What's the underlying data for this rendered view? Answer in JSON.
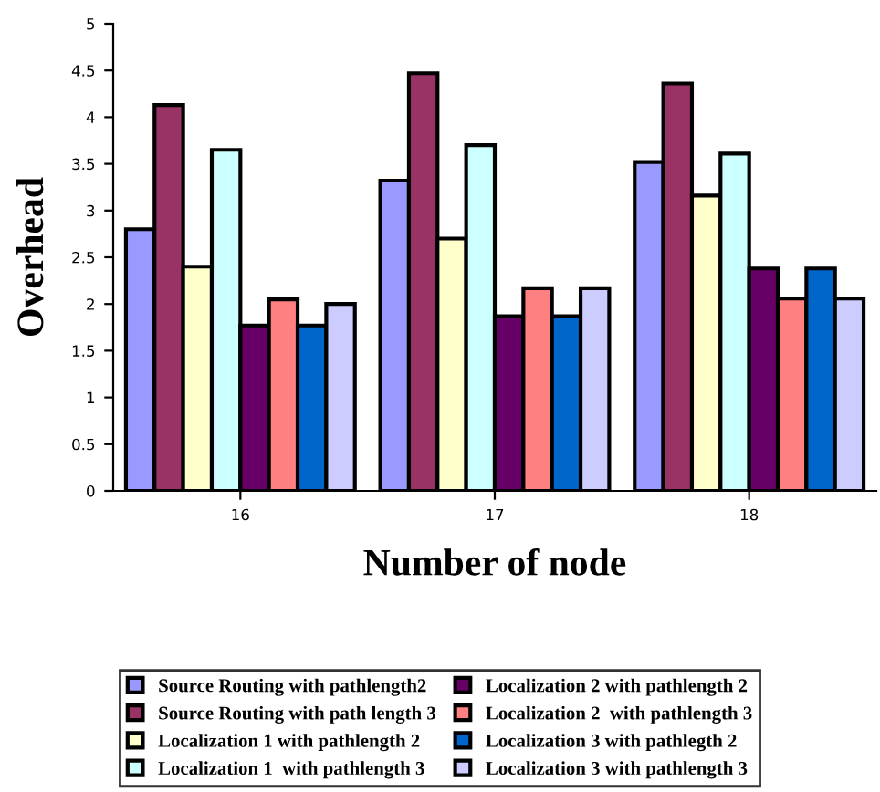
{
  "chart_data": {
    "type": "bar",
    "xlabel": "Number of node",
    "ylabel": "Overhead",
    "categories": [
      "16",
      "17",
      "18"
    ],
    "ylim": [
      0,
      5
    ],
    "yticks": [
      0,
      0.5,
      1,
      1.5,
      2,
      2.5,
      3,
      3.5,
      4,
      4.5,
      5
    ],
    "grid": false,
    "legend": "bottom",
    "series": [
      {
        "name": "Source Routing with pathlength2",
        "color": "#9999ff",
        "values": [
          2.8,
          3.32,
          3.52
        ]
      },
      {
        "name": "Source Routing with path length 3",
        "color": "#993366",
        "values": [
          4.13,
          4.47,
          4.36
        ]
      },
      {
        "name": "Localization 1 with pathlength 2",
        "color": "#ffffcc",
        "values": [
          2.4,
          2.7,
          3.16
        ]
      },
      {
        "name": "Localization 1  with pathlength 3",
        "color": "#ccffff",
        "values": [
          3.65,
          3.7,
          3.61
        ]
      },
      {
        "name": "Localization 2 with pathlength 2",
        "color": "#660066",
        "values": [
          1.77,
          1.87,
          2.38
        ]
      },
      {
        "name": "Localization 2  with pathlength 3",
        "color": "#ff8080",
        "values": [
          2.05,
          2.17,
          2.06
        ]
      },
      {
        "name": "Localization 3 with pathlegth 2",
        "color": "#0066cc",
        "values": [
          1.77,
          1.87,
          2.38
        ]
      },
      {
        "name": "Localization 3 with pathlength 3",
        "color": "#ccccff",
        "values": [
          2.0,
          2.17,
          2.06
        ]
      }
    ]
  }
}
